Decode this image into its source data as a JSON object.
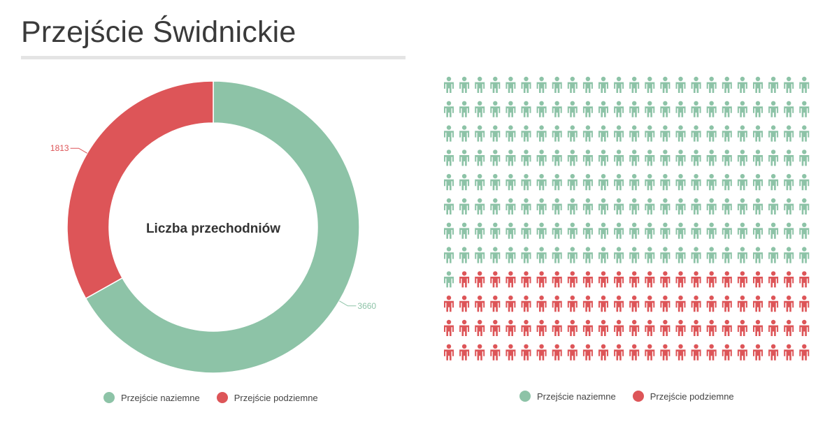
{
  "page": {
    "title": "Przejście Świdnickie"
  },
  "colors": {
    "naziemne": "#8dc3a7",
    "podziemne": "#dd5558"
  },
  "legend": {
    "items": [
      {
        "label": "Przejście naziemne",
        "color": "#8dc3a7"
      },
      {
        "label": "Przejście podziemne",
        "color": "#dd5558"
      }
    ]
  },
  "chart_data": [
    {
      "type": "pie",
      "variant": "donut",
      "center_label": "Liczba przechodniów",
      "categories": [
        "Przejście naziemne",
        "Przejście podziemne"
      ],
      "values": [
        3660,
        1813
      ],
      "data_labels": [
        "3660",
        "1813"
      ],
      "colors": [
        "#8dc3a7",
        "#dd5558"
      ],
      "legend_placement": "bottom"
    },
    {
      "type": "waffle",
      "unit": "person-icon",
      "rows": 12,
      "columns": 24,
      "categories": [
        "Przejście naziemne",
        "Przejście podziemne"
      ],
      "values": [
        193,
        95
      ],
      "colors": [
        "#8dc3a7",
        "#dd5558"
      ],
      "legend_placement": "bottom"
    }
  ]
}
